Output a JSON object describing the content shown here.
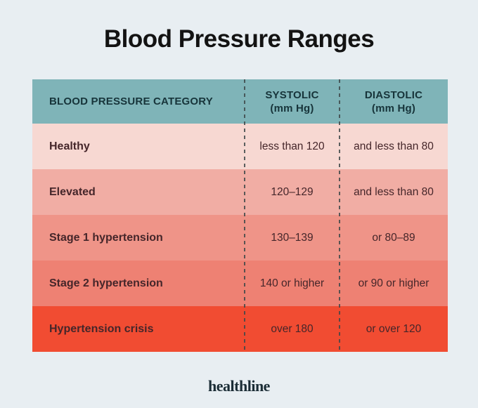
{
  "page": {
    "title": "Blood Pressure Ranges",
    "brand": "healthline"
  },
  "colors": {
    "page-bg": "#e8eef2",
    "title-text": "#131313",
    "header-bg": "#7fb4b8",
    "header-text": "#17343a",
    "row-text": "#45262a",
    "divider": "#3e4849",
    "brand-text": "#1b2d36"
  },
  "table": {
    "columns": [
      {
        "label": "BLOOD PRESSURE CATEGORY",
        "sub": ""
      },
      {
        "label": "SYSTOLIC",
        "sub": "(mm Hg)"
      },
      {
        "label": "DIASTOLIC",
        "sub": "(mm Hg)"
      }
    ],
    "rows": [
      {
        "category": "Healthy",
        "systolic": "less than 120",
        "diastolic": "and less than 80",
        "bg": "#f7d8d2"
      },
      {
        "category": "Elevated",
        "systolic": "120–129",
        "diastolic": "and less than 80",
        "bg": "#f1ada4"
      },
      {
        "category": "Stage 1 hypertension",
        "systolic": "130–139",
        "diastolic": "or 80–89",
        "bg": "#ef9488"
      },
      {
        "category": "Stage 2 hypertension",
        "systolic": "140 or higher",
        "diastolic": "or 90 or higher",
        "bg": "#ee8173"
      },
      {
        "category": "Hypertension crisis",
        "systolic": "over 180",
        "diastolic": "or over 120",
        "bg": "#f14c32"
      }
    ]
  },
  "chart_data": {
    "type": "table",
    "title": "Blood Pressure Ranges",
    "columns": [
      "BLOOD PRESSURE CATEGORY",
      "SYSTOLIC (mm Hg)",
      "DIASTOLIC (mm Hg)"
    ],
    "rows": [
      [
        "Healthy",
        "less than 120",
        "and less than 80"
      ],
      [
        "Elevated",
        "120–129",
        "and less than 80"
      ],
      [
        "Stage 1 hypertension",
        "130–139",
        "or 80–89"
      ],
      [
        "Stage 2 hypertension",
        "140 or higher",
        "or 90 or higher"
      ],
      [
        "Hypertension crisis",
        "over 180",
        "or over 120"
      ]
    ],
    "row_colors": [
      "#f7d8d2",
      "#f1ada4",
      "#ef9488",
      "#ee8173",
      "#f14c32"
    ],
    "header_color": "#7fb4b8",
    "footer_brand": "healthline"
  }
}
